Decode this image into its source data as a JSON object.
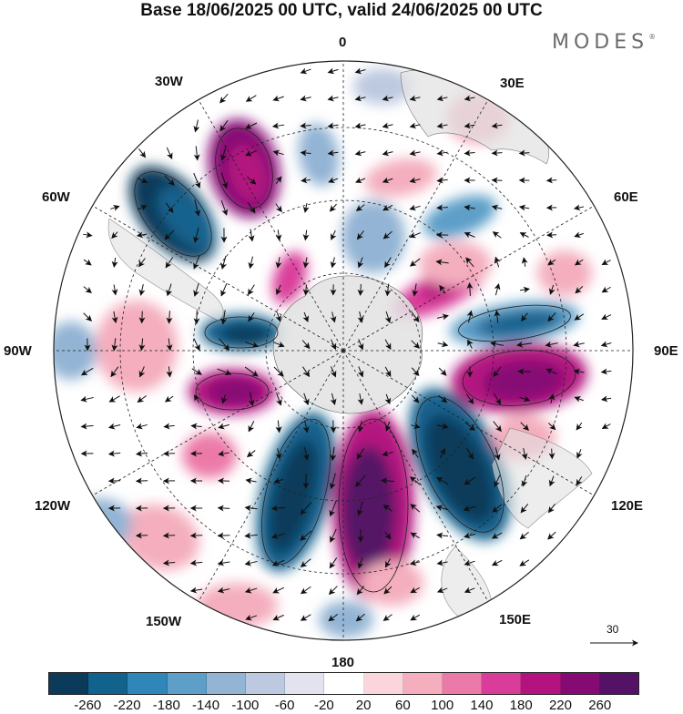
{
  "title": "Base 18/06/2025 00 UTC, valid 24/06/2025 00 UTC",
  "brand": {
    "name": "MODES",
    "mark": "®"
  },
  "map": {
    "projection": "south-polar-stereographic",
    "longitude_labels": {
      "top": "0",
      "top_right": "30E",
      "right_upper": "60E",
      "right": "90E",
      "right_lower": "120E",
      "bottom_right": "150E",
      "bottom": "180",
      "bottom_left": "150W",
      "left_lower": "120W",
      "left": "90W",
      "left_upper": "60W",
      "top_left": "30W"
    },
    "wind_reference_value": "30",
    "land_color": "#e2e2e2"
  },
  "colorbar": {
    "ticks": [
      "-260",
      "-220",
      "-180",
      "-140",
      "-100",
      "-60",
      "-20",
      "20",
      "60",
      "100",
      "140",
      "180",
      "220",
      "260"
    ],
    "colors": [
      "#0c3a5a",
      "#12628e",
      "#2f86b8",
      "#5d9fc8",
      "#93b4d4",
      "#bdc9e0",
      "#e3e3ef",
      "#ffffff",
      "#fad6dc",
      "#f4aebe",
      "#ec7aa8",
      "#da3c9a",
      "#b4127f",
      "#860a74",
      "#541266"
    ]
  }
}
